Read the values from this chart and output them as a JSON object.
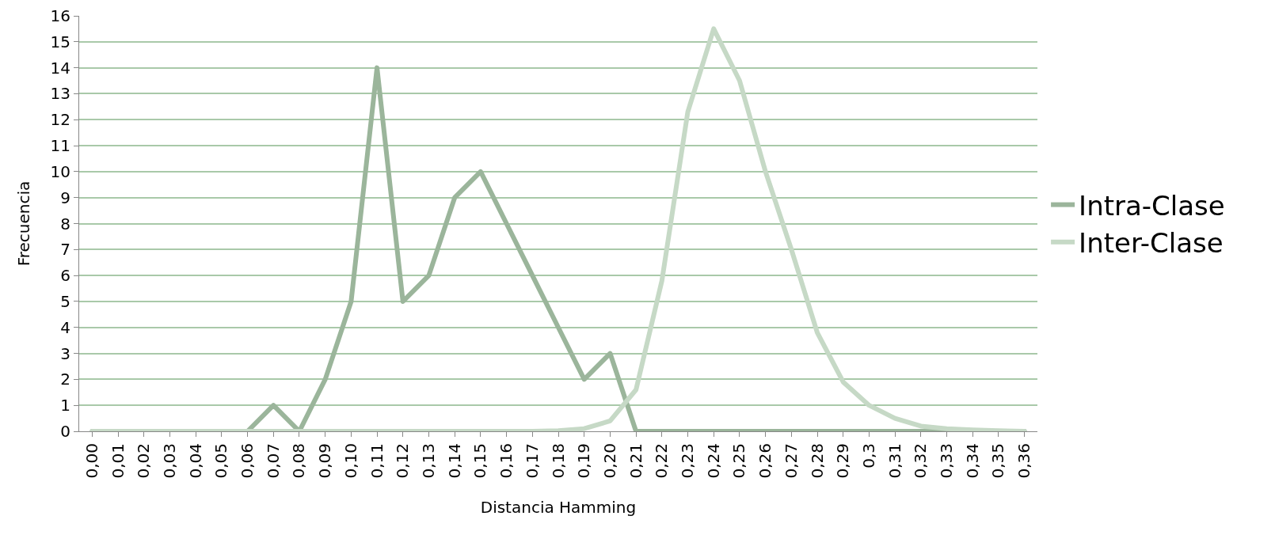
{
  "chart_data": {
    "type": "line",
    "xlabel": "Distancia Hamming",
    "ylabel": "Frecuencia",
    "categories": [
      "0,00",
      "0,01",
      "0,02",
      "0,03",
      "0,04",
      "0,05",
      "0,06",
      "0,07",
      "0,08",
      "0,09",
      "0,10",
      "0,11",
      "0,12",
      "0,13",
      "0,14",
      "0,15",
      "0,16",
      "0,17",
      "0,18",
      "0,19",
      "0,20",
      "0,21",
      "0,22",
      "0,23",
      "0,24",
      "0,25",
      "0,26",
      "0,27",
      "0,28",
      "0,29",
      "0,3",
      "0,31",
      "0,32",
      "0,33",
      "0,34",
      "0,35",
      "0,36"
    ],
    "series": [
      {
        "name": "Intra-Clase",
        "color": "#9bb59b",
        "values": [
          0,
          0,
          0,
          0,
          0,
          0,
          0,
          1,
          0,
          2,
          5,
          14,
          5,
          6,
          9,
          10,
          8,
          6,
          4,
          2,
          3,
          0,
          0,
          0,
          0,
          0,
          0,
          0,
          0,
          0,
          0,
          0,
          0,
          0,
          0,
          0,
          0
        ]
      },
      {
        "name": "Inter-Clase",
        "color": "#c6d9c6",
        "values": [
          0,
          0,
          0,
          0,
          0,
          0,
          0,
          0,
          0,
          0,
          0,
          0,
          0,
          0,
          0,
          0,
          0,
          0,
          0.02,
          0.1,
          0.4,
          1.6,
          5.8,
          12.3,
          15.5,
          13.5,
          10,
          7,
          3.8,
          1.9,
          1,
          0.5,
          0.2,
          0.1,
          0.05,
          0.02,
          0
        ]
      }
    ],
    "ylim": [
      0,
      16
    ],
    "yticks": [
      0,
      1,
      2,
      3,
      4,
      5,
      6,
      7,
      8,
      9,
      10,
      11,
      12,
      13,
      14,
      15,
      16
    ],
    "grid": "y",
    "legend": "right",
    "marker": "none",
    "line_style": "solid"
  }
}
